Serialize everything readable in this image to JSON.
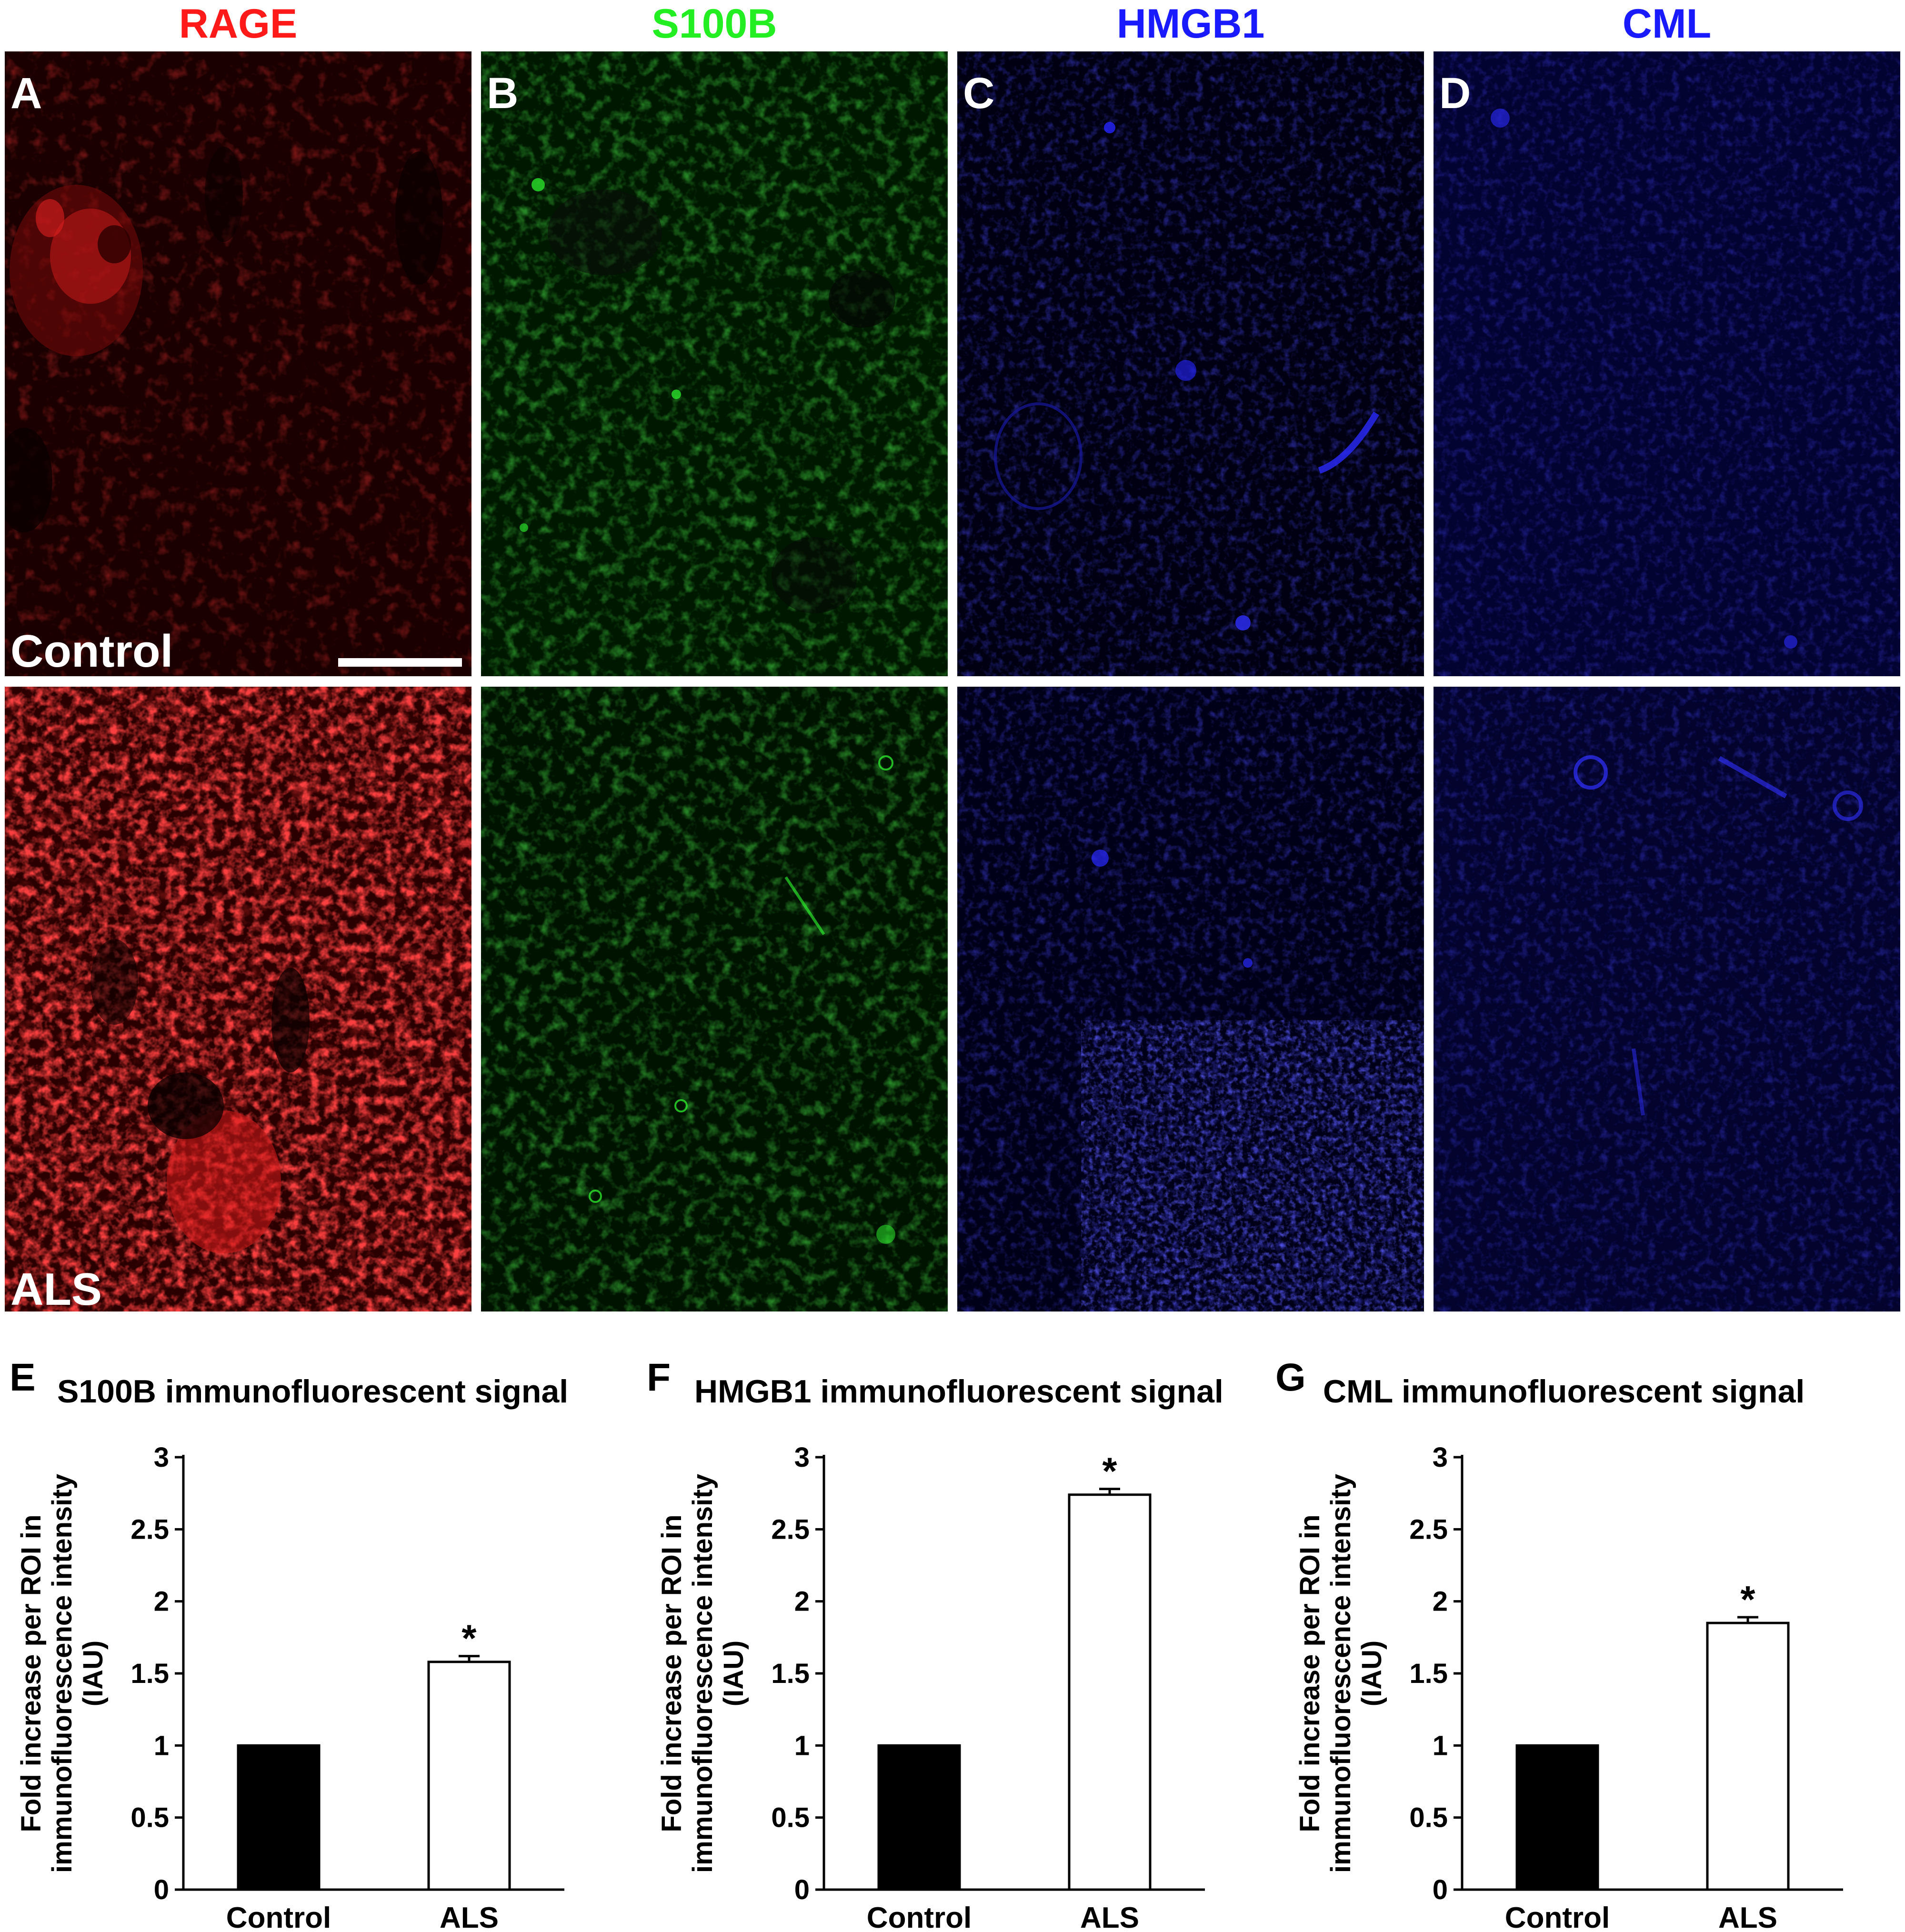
{
  "figure": {
    "columns": [
      {
        "title": "RAGE",
        "color": "#ff1a1a",
        "panel": "A"
      },
      {
        "title": "S100B",
        "color": "#22ee22",
        "panel": "B"
      },
      {
        "title": "HMGB1",
        "color": "#1a1aff",
        "panel": "C"
      },
      {
        "title": "CML",
        "color": "#1a1aff",
        "panel": "D"
      }
    ],
    "rows": [
      {
        "group": "Control"
      },
      {
        "group": "ALS"
      }
    ]
  },
  "chart_data": [
    {
      "panel": "E",
      "type": "bar",
      "title": "S100B immunofluorescent signal",
      "ylabel_lines": [
        "Fold increase per ROI in",
        "immunofluorescence intensity",
        "(IAU)"
      ],
      "categories": [
        "Control",
        "ALS"
      ],
      "values": [
        1.0,
        1.58
      ],
      "errors": [
        0,
        0.04
      ],
      "significance": [
        "",
        "*"
      ],
      "bar_colors": [
        "#000000",
        "#ffffff"
      ],
      "ylim": [
        0,
        3
      ],
      "yticks": [
        "0",
        "0.5",
        "1",
        "1.5",
        "2",
        "2.5",
        "3"
      ]
    },
    {
      "panel": "F",
      "type": "bar",
      "title": "HMGB1 immunofluorescent signal",
      "ylabel_lines": [
        "Fold increase per ROI in",
        "immunofluorescence intensity",
        "(IAU)"
      ],
      "categories": [
        "Control",
        "ALS"
      ],
      "values": [
        1.0,
        2.74
      ],
      "errors": [
        0,
        0.04
      ],
      "significance": [
        "",
        "*"
      ],
      "bar_colors": [
        "#000000",
        "#ffffff"
      ],
      "ylim": [
        0,
        3
      ],
      "yticks": [
        "0",
        "0.5",
        "1",
        "1.5",
        "2",
        "2.5",
        "3"
      ]
    },
    {
      "panel": "G",
      "type": "bar",
      "title": "CML immunofluorescent signal",
      "ylabel_lines": [
        "Fold increase per ROI in",
        "immunofluorescence intensity",
        "(IAU)"
      ],
      "categories": [
        "Control",
        "ALS"
      ],
      "values": [
        1.0,
        1.85
      ],
      "errors": [
        0,
        0.04
      ],
      "significance": [
        "",
        "*"
      ],
      "bar_colors": [
        "#000000",
        "#ffffff"
      ],
      "ylim": [
        0,
        3
      ],
      "yticks": [
        "0",
        "0.5",
        "1",
        "1.5",
        "2",
        "2.5",
        "3"
      ]
    }
  ]
}
